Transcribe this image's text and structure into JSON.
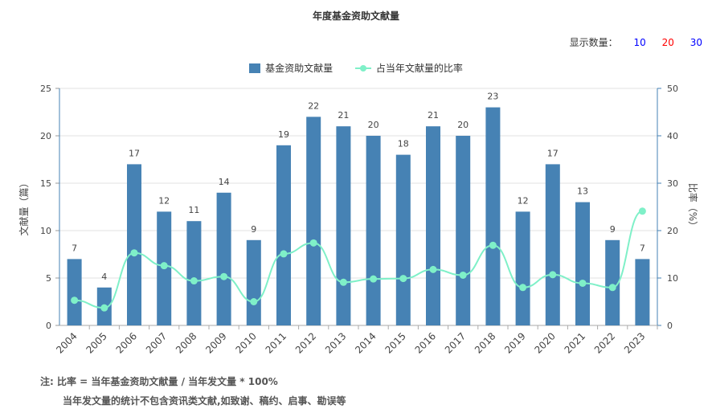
{
  "header": {
    "title": "年度基金资助文献量",
    "show_label": "显示数量：",
    "show_options": [
      {
        "label": "10",
        "color": "#0000ff"
      },
      {
        "label": "20",
        "color": "#ff0000"
      },
      {
        "label": "30",
        "color": "#0000ff"
      }
    ]
  },
  "notes": {
    "line1": "注:   比率 = 当年基金资助文献量 / 当年发文量 * 100%",
    "line2": "当年发文量的统计不包含资讯类文献,如致谢、稿约、启事、勘误等"
  },
  "chart_data": {
    "type": "bar",
    "title": "年度基金资助文献量",
    "categories": [
      "2004",
      "2005",
      "2006",
      "2007",
      "2008",
      "2009",
      "2010",
      "2011",
      "2012",
      "2013",
      "2014",
      "2015",
      "2016",
      "2017",
      "2018",
      "2019",
      "2020",
      "2021",
      "2022",
      "2023"
    ],
    "series": [
      {
        "name": "基金资助文献量",
        "type": "bar",
        "axis": "left",
        "color": "#4682b4",
        "values": [
          7,
          4,
          17,
          12,
          11,
          14,
          9,
          19,
          22,
          21,
          20,
          18,
          21,
          20,
          23,
          12,
          17,
          13,
          9,
          7
        ]
      },
      {
        "name": "占当年文献量的比率",
        "type": "line",
        "axis": "right",
        "color": "#7ff0c8",
        "values": [
          5.3,
          3.7,
          15.3,
          12.6,
          9.4,
          10.3,
          5.0,
          15.1,
          17.4,
          9.1,
          9.8,
          9.9,
          11.8,
          10.6,
          16.9,
          8.0,
          10.7,
          8.9,
          8.0,
          24.1
        ]
      }
    ],
    "ylabel_left": "文献量（篇）",
    "ylabel_right": "比率（%）",
    "ylim_left": [
      0,
      25
    ],
    "yticks_left": [
      0,
      5,
      10,
      15,
      20,
      25
    ],
    "ylim_right": [
      0,
      50
    ],
    "yticks_right": [
      0,
      10,
      20,
      30,
      40,
      50
    ],
    "grid": true,
    "legend_position": "top-center"
  }
}
